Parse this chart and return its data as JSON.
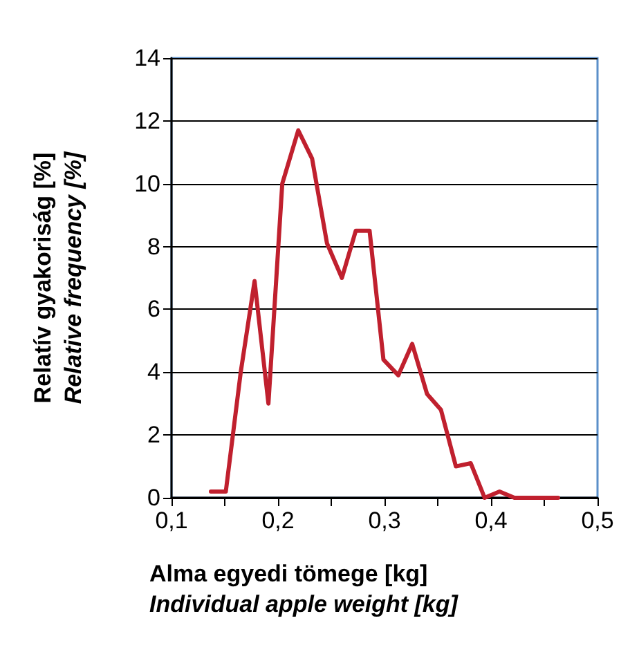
{
  "chart_data": {
    "type": "line",
    "xlabel": "Alma egyedi tömege [kg]\nIndividual apple weight [kg]",
    "ylabel": "Relatív gyakoriság [%]\nRelative frequency [%]",
    "x": [
      0.137,
      0.151,
      0.165,
      0.178,
      0.191,
      0.204,
      0.219,
      0.232,
      0.246,
      0.26,
      0.273,
      0.286,
      0.299,
      0.313,
      0.326,
      0.34,
      0.353,
      0.367,
      0.381,
      0.394,
      0.408,
      0.422,
      0.435,
      0.449,
      0.463
    ],
    "series": [
      {
        "color": "#c0202e",
        "values": [
          0.2,
          0.2,
          4.0,
          6.9,
          3.0,
          10.0,
          11.7,
          10.8,
          8.1,
          7.0,
          8.5,
          8.5,
          4.4,
          3.9,
          4.9,
          3.3,
          2.8,
          1.0,
          1.1,
          0,
          0.2,
          0,
          0,
          0,
          0
        ]
      }
    ],
    "xlim": [
      0.1,
      0.5
    ],
    "xticks": [
      {
        "value": 0.1,
        "label": "0,1"
      },
      {
        "value": 0.15,
        "label": null
      },
      {
        "value": 0.2,
        "label": "0,2"
      },
      {
        "value": 0.25,
        "label": null
      },
      {
        "value": 0.3,
        "label": "0,3"
      },
      {
        "value": 0.35,
        "label": null
      },
      {
        "value": 0.4,
        "label": "0,4"
      },
      {
        "value": 0.45,
        "label": null
      },
      {
        "value": 0.5,
        "label": "0,5"
      }
    ],
    "ylim": [
      0,
      14
    ],
    "yticks": [
      0,
      2,
      4,
      6,
      8,
      10,
      12,
      14
    ],
    "grid": "y",
    "marker": "none",
    "line_style": "solid"
  }
}
